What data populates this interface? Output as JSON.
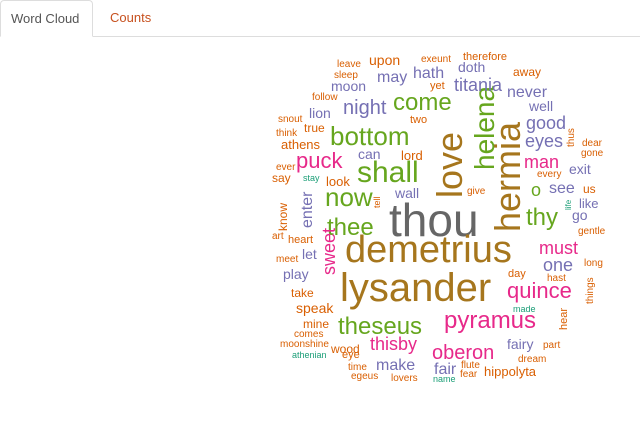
{
  "tabs": [
    {
      "label": "Word Cloud",
      "active": true
    },
    {
      "label": "Counts",
      "active": false
    }
  ],
  "colors": {
    "tab_active_text": "#555555",
    "tab_inactive_text": "#c7511f",
    "palette": [
      "#1b9e77",
      "#d95f02",
      "#7570b3",
      "#e7298a",
      "#66a61e",
      "#e6ab02",
      "#a6761d",
      "#666666"
    ]
  },
  "word_cloud": {
    "words": [
      {
        "text": "thou",
        "color": "#666666"
      },
      {
        "text": "demetrius",
        "color": "#a6761d"
      },
      {
        "text": "lysander",
        "color": "#a6761d"
      },
      {
        "text": "love",
        "color": "#a6761d"
      },
      {
        "text": "hermia",
        "color": "#a6761d"
      },
      {
        "text": "theseus",
        "color": "#66a61e"
      },
      {
        "text": "pyramus",
        "color": "#e7298a"
      },
      {
        "text": "shall",
        "color": "#66a61e"
      },
      {
        "text": "helena",
        "color": "#66a61e"
      },
      {
        "text": "bottom",
        "color": "#66a61e"
      },
      {
        "text": "quince",
        "color": "#e7298a"
      },
      {
        "text": "now",
        "color": "#66a61e"
      },
      {
        "text": "thee",
        "color": "#66a61e"
      },
      {
        "text": "thy",
        "color": "#66a61e"
      },
      {
        "text": "puck",
        "color": "#e7298a"
      },
      {
        "text": "come",
        "color": "#66a61e"
      },
      {
        "text": "sweet",
        "color": "#e7298a"
      },
      {
        "text": "oberon",
        "color": "#e7298a"
      },
      {
        "text": "thisby",
        "color": "#e7298a"
      },
      {
        "text": "night",
        "color": "#7570b3"
      },
      {
        "text": "man",
        "color": "#e7298a"
      },
      {
        "text": "must",
        "color": "#e7298a"
      },
      {
        "text": "one",
        "color": "#7570b3"
      },
      {
        "text": "good",
        "color": "#7570b3"
      },
      {
        "text": "eyes",
        "color": "#7570b3"
      },
      {
        "text": "titania",
        "color": "#7570b3"
      },
      {
        "text": "o",
        "color": "#66a61e"
      },
      {
        "text": "see",
        "color": "#7570b3"
      },
      {
        "text": "never",
        "color": "#7570b3"
      },
      {
        "text": "make",
        "color": "#7570b3"
      },
      {
        "text": "fair",
        "color": "#7570b3"
      },
      {
        "text": "fairy",
        "color": "#7570b3"
      },
      {
        "text": "enter",
        "color": "#7570b3"
      },
      {
        "text": "play",
        "color": "#7570b3"
      },
      {
        "text": "may",
        "color": "#7570b3"
      },
      {
        "text": "hath",
        "color": "#7570b3"
      },
      {
        "text": "can",
        "color": "#7570b3"
      },
      {
        "text": "upon",
        "color": "#d95f02"
      },
      {
        "text": "moon",
        "color": "#7570b3"
      },
      {
        "text": "well",
        "color": "#7570b3"
      },
      {
        "text": "exit",
        "color": "#7570b3"
      },
      {
        "text": "speak",
        "color": "#d95f02"
      },
      {
        "text": "hippolyta",
        "color": "#d95f02"
      },
      {
        "text": "wall",
        "color": "#7570b3"
      },
      {
        "text": "let",
        "color": "#7570b3"
      },
      {
        "text": "doth",
        "color": "#7570b3"
      },
      {
        "text": "go",
        "color": "#7570b3"
      },
      {
        "text": "lord",
        "color": "#d95f02"
      },
      {
        "text": "look",
        "color": "#d95f02"
      },
      {
        "text": "lion",
        "color": "#7570b3"
      },
      {
        "text": "athens",
        "color": "#d95f02"
      },
      {
        "text": "wood",
        "color": "#d95f02"
      },
      {
        "text": "like",
        "color": "#7570b3"
      },
      {
        "text": "away",
        "color": "#d95f02"
      },
      {
        "text": "true",
        "color": "#d95f02"
      },
      {
        "text": "say",
        "color": "#d95f02"
      },
      {
        "text": "know",
        "color": "#d95f02"
      },
      {
        "text": "take",
        "color": "#d95f02"
      },
      {
        "text": "mine",
        "color": "#d95f02"
      },
      {
        "text": "two",
        "color": "#d95f02"
      },
      {
        "text": "yet",
        "color": "#d95f02"
      },
      {
        "text": "us",
        "color": "#d95f02"
      },
      {
        "text": "hear",
        "color": "#d95f02"
      },
      {
        "text": "day",
        "color": "#d95f02"
      },
      {
        "text": "heart",
        "color": "#d95f02"
      },
      {
        "text": "eye",
        "color": "#d95f02"
      },
      {
        "text": "therefore",
        "color": "#d95f02"
      },
      {
        "text": "lovers",
        "color": "#d95f02"
      },
      {
        "text": "sleep",
        "color": "#d95f02"
      },
      {
        "text": "leave",
        "color": "#d95f02"
      },
      {
        "text": "exeunt",
        "color": "#d95f02"
      },
      {
        "text": "give",
        "color": "#d95f02"
      },
      {
        "text": "comes",
        "color": "#d95f02"
      },
      {
        "text": "dream",
        "color": "#d95f02"
      },
      {
        "text": "part",
        "color": "#d95f02"
      },
      {
        "text": "fear",
        "color": "#d95f02"
      },
      {
        "text": "flute",
        "color": "#d95f02"
      },
      {
        "text": "egeus",
        "color": "#d95f02"
      },
      {
        "text": "time",
        "color": "#d95f02"
      },
      {
        "text": "hast",
        "color": "#d95f02"
      },
      {
        "text": "long",
        "color": "#d95f02"
      },
      {
        "text": "things",
        "color": "#d95f02"
      },
      {
        "text": "gentle",
        "color": "#d95f02"
      },
      {
        "text": "every",
        "color": "#d95f02"
      },
      {
        "text": "dear",
        "color": "#d95f02"
      },
      {
        "text": "gone",
        "color": "#d95f02"
      },
      {
        "text": "thus",
        "color": "#d95f02"
      },
      {
        "text": "follow",
        "color": "#d95f02"
      },
      {
        "text": "snout",
        "color": "#d95f02"
      },
      {
        "text": "think",
        "color": "#d95f02"
      },
      {
        "text": "ever",
        "color": "#d95f02"
      },
      {
        "text": "art",
        "color": "#d95f02"
      },
      {
        "text": "meet",
        "color": "#d95f02"
      },
      {
        "text": "moonshine",
        "color": "#d95f02"
      },
      {
        "text": "tell",
        "color": "#d95f02"
      },
      {
        "text": "stay",
        "color": "#1b9e77"
      },
      {
        "text": "life",
        "color": "#1b9e77"
      },
      {
        "text": "made",
        "color": "#1b9e77"
      },
      {
        "text": "athenian",
        "color": "#1b9e77"
      },
      {
        "text": "name",
        "color": "#1b9e77"
      }
    ]
  }
}
